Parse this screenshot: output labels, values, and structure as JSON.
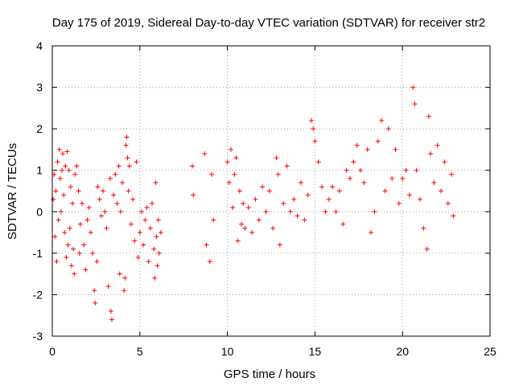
{
  "chart_data": {
    "type": "scatter",
    "title": "Day 175 of 2019, Sidereal Day-to-day VTEC variation (SDTVAR) for receiver str2",
    "xlabel": "GPS time / hours",
    "ylabel": "SDTVAR / TECUs",
    "xlim": [
      0,
      25
    ],
    "ylim": [
      -3,
      4
    ],
    "xticks": [
      "0",
      "5",
      "10",
      "15",
      "20",
      "25"
    ],
    "yticks": [
      "-3",
      "-2",
      "-1",
      "0",
      "1",
      "2",
      "3",
      "4"
    ],
    "grid": true,
    "marker": "plus",
    "color": "#ff0000",
    "series": [
      {
        "name": "SDTVAR",
        "points": [
          [
            0.05,
            0.3
          ],
          [
            0.1,
            0.9
          ],
          [
            0.15,
            -0.6
          ],
          [
            0.2,
            0.5
          ],
          [
            0.25,
            -1.2
          ],
          [
            0.3,
            1.2
          ],
          [
            0.35,
            -0.2
          ],
          [
            0.4,
            1.5
          ],
          [
            0.45,
            0.8
          ],
          [
            0.5,
            0.0
          ],
          [
            0.55,
            1.0
          ],
          [
            0.6,
            1.4
          ],
          [
            0.65,
            0.4
          ],
          [
            0.7,
            -0.5
          ],
          [
            0.75,
            1.1
          ],
          [
            0.8,
            -1.1
          ],
          [
            0.85,
            1.45
          ],
          [
            0.9,
            -0.8
          ],
          [
            0.95,
            1.0
          ],
          [
            1.0,
            -0.4
          ],
          [
            1.05,
            0.6
          ],
          [
            1.1,
            -1.3
          ],
          [
            1.15,
            0.2
          ],
          [
            1.2,
            -0.9
          ],
          [
            1.25,
            -1.5
          ],
          [
            1.3,
            0.9
          ],
          [
            1.4,
            1.1
          ],
          [
            1.5,
            0.5
          ],
          [
            1.55,
            -1.0
          ],
          [
            1.6,
            -0.3
          ],
          [
            1.7,
            0.2
          ],
          [
            1.8,
            -0.8
          ],
          [
            1.9,
            -1.4
          ],
          [
            2.0,
            -0.2
          ],
          [
            2.1,
            0.1
          ],
          [
            2.2,
            -0.5
          ],
          [
            2.3,
            -1.0
          ],
          [
            2.4,
            -1.9
          ],
          [
            2.45,
            -2.2
          ],
          [
            2.55,
            -1.2
          ],
          [
            2.6,
            0.6
          ],
          [
            2.7,
            0.3
          ],
          [
            2.8,
            -0.1
          ],
          [
            2.9,
            0.5
          ],
          [
            3.0,
            0.0
          ],
          [
            3.1,
            -0.4
          ],
          [
            3.2,
            -1.8
          ],
          [
            3.3,
            0.8
          ],
          [
            3.35,
            -2.4
          ],
          [
            3.4,
            -2.6
          ],
          [
            3.5,
            0.4
          ],
          [
            3.6,
            0.9
          ],
          [
            3.7,
            0.2
          ],
          [
            3.8,
            1.1
          ],
          [
            3.85,
            -1.5
          ],
          [
            3.9,
            0.0
          ],
          [
            4.0,
            0.7
          ],
          [
            4.1,
            -1.9
          ],
          [
            4.15,
            -1.6
          ],
          [
            4.2,
            1.6
          ],
          [
            4.25,
            1.8
          ],
          [
            4.3,
            1.3
          ],
          [
            4.35,
            0.5
          ],
          [
            4.4,
            1.1
          ],
          [
            4.5,
            -0.3
          ],
          [
            4.6,
            0.3
          ],
          [
            4.7,
            -0.7
          ],
          [
            4.8,
            1.2
          ],
          [
            4.9,
            -1.1
          ],
          [
            5.0,
            -0.5
          ],
          [
            5.1,
            0.0
          ],
          [
            5.2,
            -0.8
          ],
          [
            5.3,
            -0.2
          ],
          [
            5.4,
            0.1
          ],
          [
            5.5,
            -1.2
          ],
          [
            5.6,
            -0.4
          ],
          [
            5.7,
            0.2
          ],
          [
            5.8,
            -0.9
          ],
          [
            5.85,
            -1.6
          ],
          [
            5.9,
            0.7
          ],
          [
            5.95,
            -0.6
          ],
          [
            6.0,
            -1.3
          ],
          [
            6.05,
            -0.2
          ],
          [
            6.1,
            -1.0
          ],
          [
            6.2,
            -0.5
          ],
          [
            8.0,
            1.1
          ],
          [
            8.05,
            0.4
          ],
          [
            8.7,
            1.4
          ],
          [
            8.8,
            -0.8
          ],
          [
            9.0,
            -1.2
          ],
          [
            9.1,
            0.9
          ],
          [
            9.2,
            -0.2
          ],
          [
            10.0,
            1.2
          ],
          [
            10.1,
            0.7
          ],
          [
            10.2,
            1.5
          ],
          [
            10.3,
            0.1
          ],
          [
            10.4,
            0.9
          ],
          [
            10.5,
            1.3
          ],
          [
            10.6,
            -0.7
          ],
          [
            10.7,
            0.5
          ],
          [
            10.8,
            -0.3
          ],
          [
            10.9,
            0.2
          ],
          [
            11.0,
            -0.4
          ],
          [
            11.2,
            0.1
          ],
          [
            11.4,
            -0.5
          ],
          [
            11.6,
            0.3
          ],
          [
            11.8,
            -0.2
          ],
          [
            12.0,
            0.6
          ],
          [
            12.2,
            0.0
          ],
          [
            12.4,
            0.5
          ],
          [
            12.6,
            -0.4
          ],
          [
            12.8,
            1.3
          ],
          [
            12.9,
            0.9
          ],
          [
            13.0,
            -0.8
          ],
          [
            13.2,
            0.2
          ],
          [
            13.4,
            1.1
          ],
          [
            13.6,
            0.0
          ],
          [
            13.8,
            0.3
          ],
          [
            14.0,
            -0.1
          ],
          [
            14.2,
            0.7
          ],
          [
            14.4,
            -0.2
          ],
          [
            14.6,
            0.4
          ],
          [
            14.8,
            2.2
          ],
          [
            14.9,
            2.0
          ],
          [
            15.0,
            1.7
          ],
          [
            15.2,
            1.2
          ],
          [
            15.4,
            0.6
          ],
          [
            15.6,
            0.0
          ],
          [
            15.8,
            0.3
          ],
          [
            16.0,
            0.6
          ],
          [
            16.2,
            0.0
          ],
          [
            16.4,
            0.5
          ],
          [
            16.6,
            -0.3
          ],
          [
            16.8,
            1.0
          ],
          [
            17.0,
            0.8
          ],
          [
            17.2,
            1.2
          ],
          [
            17.4,
            1.6
          ],
          [
            17.6,
            1.0
          ],
          [
            17.8,
            0.7
          ],
          [
            18.0,
            1.5
          ],
          [
            18.2,
            -0.5
          ],
          [
            18.4,
            0.0
          ],
          [
            18.6,
            1.7
          ],
          [
            18.8,
            2.2
          ],
          [
            19.0,
            0.5
          ],
          [
            19.2,
            2.0
          ],
          [
            19.4,
            0.8
          ],
          [
            19.6,
            1.5
          ],
          [
            19.8,
            0.2
          ],
          [
            20.0,
            0.8
          ],
          [
            20.2,
            1.0
          ],
          [
            20.4,
            0.4
          ],
          [
            20.6,
            3.0
          ],
          [
            20.7,
            2.6
          ],
          [
            20.8,
            1.0
          ],
          [
            21.0,
            0.3
          ],
          [
            21.2,
            -0.4
          ],
          [
            21.4,
            -0.9
          ],
          [
            21.5,
            2.3
          ],
          [
            21.6,
            1.4
          ],
          [
            21.8,
            0.7
          ],
          [
            22.0,
            1.6
          ],
          [
            22.2,
            0.5
          ],
          [
            22.4,
            1.2
          ],
          [
            22.6,
            0.2
          ],
          [
            22.8,
            0.9
          ],
          [
            22.9,
            -0.1
          ]
        ]
      }
    ]
  }
}
